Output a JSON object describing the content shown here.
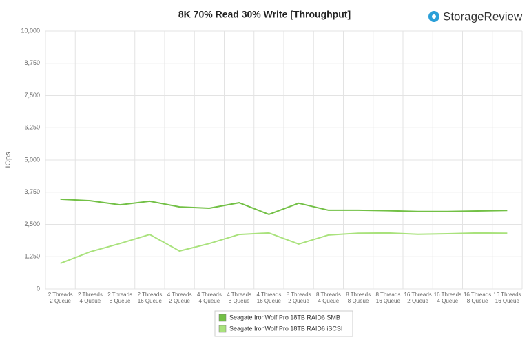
{
  "logo": "StorageReview",
  "chart_data": {
    "type": "line",
    "title": "8K 70% Read 30% Write [Throughput]",
    "y_label": "IOps",
    "categories": [
      [
        "2 Threads",
        "2 Queue"
      ],
      [
        "2 Threads",
        "4 Queue"
      ],
      [
        "2 Threads",
        "8 Queue"
      ],
      [
        "2 Threads",
        "16 Queue"
      ],
      [
        "4 Threads",
        "2 Queue"
      ],
      [
        "4 Threads",
        "4 Queue"
      ],
      [
        "4 Threads",
        "8 Queue"
      ],
      [
        "4 Threads",
        "16 Queue"
      ],
      [
        "8 Threads",
        "2 Queue"
      ],
      [
        "8 Threads",
        "4 Queue"
      ],
      [
        "8 Threads",
        "8 Queue"
      ],
      [
        "8 Threads",
        "16 Queue"
      ],
      [
        "16 Threads",
        "2 Queue"
      ],
      [
        "16 Threads",
        "4 Queue"
      ],
      [
        "16 Threads",
        "8 Queue"
      ],
      [
        "16 Threads",
        "16 Queue"
      ]
    ],
    "series": [
      {
        "name": "Seagate IronWolf Pro 18TB RAID6 SMB",
        "color": "#72c045",
        "values": [
          3480,
          3420,
          3260,
          3400,
          3180,
          3130,
          3340,
          2890,
          3320,
          3050,
          3050,
          3030,
          3000,
          3000,
          3020,
          3040
        ]
      },
      {
        "name": "Seagate IronWolf Pro 18TB RAID6 iSCSI",
        "color": "#a9e27c",
        "values": [
          990,
          1440,
          1760,
          2110,
          1470,
          1760,
          2110,
          2170,
          1740,
          2090,
          2160,
          2170,
          2120,
          2140,
          2170,
          2160
        ]
      }
    ],
    "ylim": [
      0,
      10000
    ],
    "yticks": [
      0,
      {
        "value": 1250,
        "label": "1,250"
      },
      {
        "value": 2500,
        "label": "2,500"
      },
      {
        "value": 3750,
        "label": "3,750"
      },
      {
        "value": 5000,
        "label": "5,000"
      },
      {
        "value": 6250,
        "label": "6,250"
      },
      {
        "value": 7500,
        "label": "7,500"
      },
      {
        "value": 8750,
        "label": "8,750"
      },
      {
        "value": 10000,
        "label": "10,000"
      }
    ],
    "grid": true,
    "legend": "bottom"
  }
}
